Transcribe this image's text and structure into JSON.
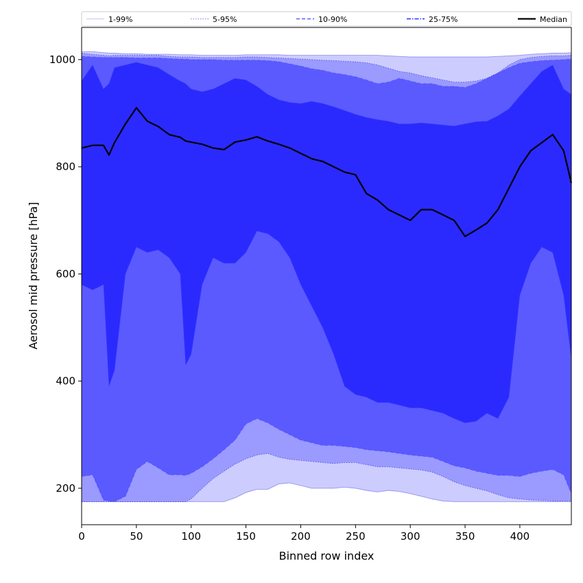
{
  "chart_data": {
    "type": "area",
    "xlabel": "Binned row index",
    "ylabel": "Aerosol mid pressure [hPa]",
    "xlim": [
      0,
      447
    ],
    "ylim": [
      132,
      1060
    ],
    "x_ticks": [
      "0",
      "50",
      "100",
      "150",
      "200",
      "250",
      "300",
      "350",
      "400"
    ],
    "y_ticks": [
      "200",
      "400",
      "600",
      "800",
      "1000"
    ],
    "legend_position": "top",
    "grid": false,
    "legend": [
      {
        "label": "1-99%",
        "color": "#ccccff",
        "line": "solid"
      },
      {
        "label": "5-95%",
        "color": "#9a9aff",
        "line": "dotted"
      },
      {
        "label": "10-90%",
        "color": "#5a5aff",
        "line": "dashed"
      },
      {
        "label": "25-75%",
        "color": "#2a2aff",
        "line": "dashdot"
      },
      {
        "label": "Median",
        "color": "#000000",
        "line": "solid"
      }
    ],
    "x": [
      0,
      10,
      20,
      25,
      30,
      40,
      50,
      60,
      70,
      80,
      90,
      95,
      100,
      110,
      120,
      130,
      140,
      150,
      160,
      170,
      180,
      190,
      200,
      210,
      220,
      230,
      240,
      250,
      260,
      270,
      280,
      290,
      300,
      310,
      320,
      330,
      340,
      350,
      360,
      370,
      380,
      390,
      400,
      410,
      420,
      430,
      440,
      447
    ],
    "bands": [
      {
        "name": "1-99%",
        "lower": [
          175,
          175,
          175,
          175,
          175,
          175,
          175,
          175,
          175,
          175,
          175,
          175,
          175,
          175,
          175,
          175,
          182,
          192,
          198,
          198,
          208,
          210,
          205,
          200,
          200,
          200,
          202,
          200,
          196,
          193,
          196,
          194,
          190,
          185,
          180,
          176,
          175,
          175,
          175,
          175,
          175,
          175,
          175,
          175,
          175,
          175,
          175,
          175
        ],
        "upper": [
          1015,
          1015,
          1013,
          1012,
          1012,
          1011,
          1011,
          1010,
          1010,
          1010,
          1009,
          1009,
          1009,
          1008,
          1008,
          1008,
          1008,
          1009,
          1009,
          1009,
          1009,
          1008,
          1008,
          1008,
          1008,
          1008,
          1008,
          1008,
          1008,
          1008,
          1007,
          1006,
          1005,
          1005,
          1005,
          1005,
          1005,
          1005,
          1005,
          1005,
          1006,
          1007,
          1008,
          1010,
          1011,
          1012,
          1012,
          1013
        ]
      },
      {
        "name": "5-95%",
        "lower": [
          175,
          175,
          175,
          175,
          175,
          175,
          175,
          175,
          175,
          175,
          175,
          175,
          180,
          200,
          218,
          232,
          245,
          255,
          262,
          265,
          258,
          254,
          252,
          250,
          248,
          246,
          248,
          248,
          244,
          240,
          240,
          238,
          236,
          234,
          230,
          222,
          212,
          205,
          200,
          195,
          188,
          182,
          180,
          178,
          177,
          176,
          176,
          176
        ],
        "upper": [
          1012,
          1010,
          1008,
          1007,
          1008,
          1008,
          1008,
          1008,
          1008,
          1006,
          1005,
          1005,
          1005,
          1004,
          1004,
          1004,
          1004,
          1005,
          1005,
          1004,
          1003,
          1002,
          1001,
          1000,
          999,
          998,
          997,
          996,
          994,
          990,
          984,
          978,
          975,
          970,
          966,
          962,
          958,
          958,
          960,
          965,
          975,
          990,
          1000,
          1004,
          1006,
          1007,
          1007,
          1008
        ]
      },
      {
        "name": "10-90%",
        "lower": [
          222,
          225,
          178,
          176,
          175,
          185,
          235,
          250,
          238,
          225,
          225,
          224,
          228,
          240,
          255,
          272,
          290,
          320,
          330,
          322,
          310,
          300,
          290,
          285,
          280,
          280,
          278,
          276,
          272,
          270,
          268,
          265,
          262,
          260,
          258,
          250,
          242,
          238,
          232,
          228,
          224,
          224,
          222,
          228,
          232,
          235,
          225,
          190
        ],
        "upper": [
          1006,
          1005,
          1004,
          1004,
          1004,
          1004,
          1003,
          1003,
          1003,
          1002,
          1001,
          1001,
          1000,
          1000,
          1000,
          999,
          999,
          999,
          999,
          998,
          996,
          992,
          988,
          983,
          980,
          975,
          972,
          968,
          962,
          955,
          958,
          965,
          960,
          955,
          955,
          950,
          950,
          948,
          955,
          965,
          975,
          985,
          993,
          996,
          998,
          999,
          1000,
          1001
        ]
      },
      {
        "name": "25-75%",
        "lower": [
          580,
          570,
          580,
          390,
          420,
          600,
          650,
          640,
          645,
          630,
          600,
          430,
          450,
          580,
          630,
          620,
          620,
          640,
          680,
          675,
          660,
          630,
          580,
          540,
          500,
          450,
          390,
          375,
          370,
          360,
          360,
          355,
          350,
          350,
          345,
          340,
          330,
          322,
          325,
          340,
          330,
          370,
          560,
          620,
          650,
          640,
          560,
          440
        ],
        "upper": [
          960,
          990,
          945,
          955,
          985,
          990,
          995,
          990,
          985,
          972,
          960,
          955,
          945,
          940,
          945,
          955,
          965,
          962,
          950,
          935,
          925,
          920,
          918,
          922,
          918,
          912,
          905,
          898,
          892,
          888,
          885,
          880,
          880,
          882,
          880,
          878,
          876,
          880,
          884,
          885,
          895,
          908,
          932,
          955,
          978,
          990,
          945,
          935
        ]
      }
    ],
    "median": [
      835,
      840,
      840,
      822,
      845,
      880,
      910,
      885,
      875,
      860,
      855,
      848,
      846,
      842,
      835,
      832,
      846,
      850,
      856,
      848,
      842,
      835,
      825,
      815,
      810,
      800,
      790,
      785,
      750,
      738,
      720,
      710,
      700,
      720,
      720,
      710,
      700,
      670,
      682,
      695,
      720,
      760,
      800,
      830,
      845,
      860,
      830,
      770
    ]
  }
}
